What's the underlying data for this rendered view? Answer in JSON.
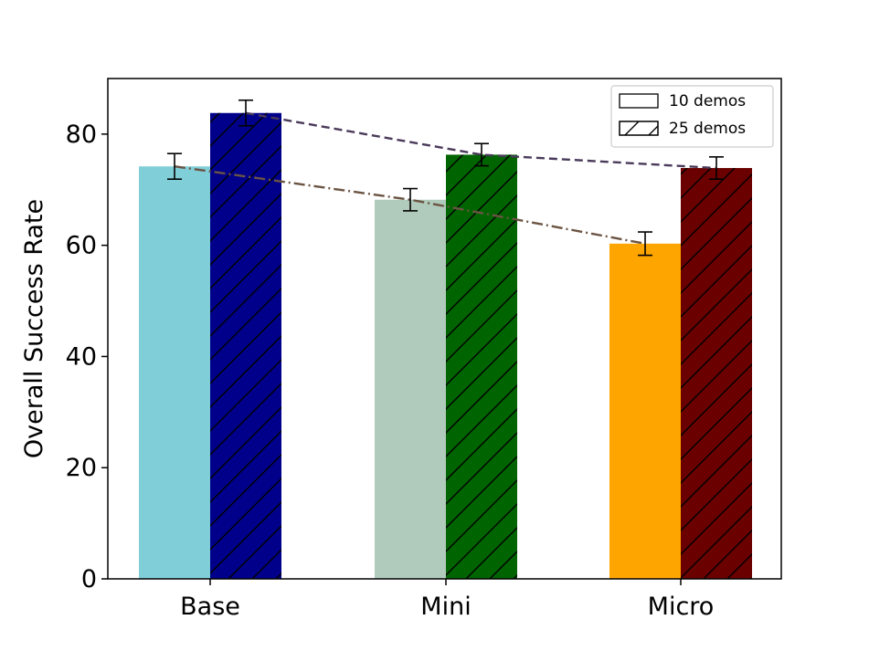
{
  "chart_data": {
    "type": "bar",
    "title": "",
    "xlabel": "",
    "ylabel": "Overall Success Rate",
    "ylim": [
      0,
      90
    ],
    "yticks": [
      "0",
      "20",
      "40",
      "60",
      "80"
    ],
    "categories": [
      "Base",
      "Mini",
      "Micro"
    ],
    "grid": false,
    "legend_position": "top-right",
    "series": [
      {
        "name": "10 demos",
        "hatch": "none",
        "values": [
          74.2,
          68.2,
          60.3
        ],
        "errors": [
          2.3,
          2.0,
          2.1
        ],
        "colors": [
          "#80cfd8",
          "#b0cbbb",
          "#ffa500"
        ],
        "trend_line": "dash-dot",
        "trend_color": "#6b5443"
      },
      {
        "name": "25 demos",
        "hatch": "diagonal",
        "values": [
          83.8,
          76.3,
          73.9
        ],
        "errors": [
          2.3,
          2.0,
          2.0
        ],
        "colors": [
          "#00008b",
          "#006400",
          "#6b0000"
        ],
        "trend_line": "dashed",
        "trend_color": "#4a3a5a"
      }
    ]
  }
}
